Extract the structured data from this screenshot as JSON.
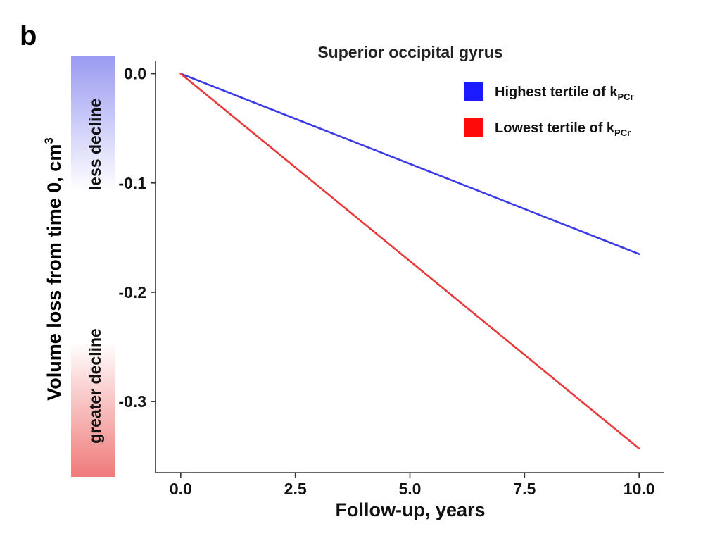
{
  "panel_label": "b",
  "chart_data": {
    "type": "line",
    "title": "Superior occipital gyrus",
    "xlabel": "Follow-up, years",
    "ylabel": "Volume loss from time 0, cm",
    "ylabel_superscript": "3",
    "xlim": [
      -0.55,
      10.55
    ],
    "ylim": [
      -0.365,
      0.012
    ],
    "x_ticks": [
      0.0,
      2.5,
      5.0,
      7.5,
      10.0
    ],
    "x_tick_labels": [
      "0.0",
      "2.5",
      "5.0",
      "7.5",
      "10.0"
    ],
    "y_ticks": [
      0.0,
      -0.1,
      -0.2,
      -0.3
    ],
    "y_tick_labels": [
      "0.0",
      "-0.1",
      "-0.2",
      "-0.3"
    ],
    "grid": false,
    "legend_position": "top-right",
    "gradient_bar": {
      "top_label": "less decline",
      "bottom_label": "greater decline",
      "top_color": "#9a9af2",
      "bottom_color": "#f07a7a"
    },
    "series": [
      {
        "name": "Highest tertile of k",
        "name_subscript": "PCr",
        "color": "#3a3ae8",
        "legend_color": "#1a1aff",
        "x": [
          0.0,
          10.0
        ],
        "y": [
          0.0,
          -0.165
        ]
      },
      {
        "name": "Lowest tertile of k",
        "name_subscript": "PCr",
        "color": "#e83a3a",
        "legend_color": "#ff0a0a",
        "x": [
          0.0,
          10.0
        ],
        "y": [
          0.0,
          -0.343
        ]
      }
    ]
  }
}
